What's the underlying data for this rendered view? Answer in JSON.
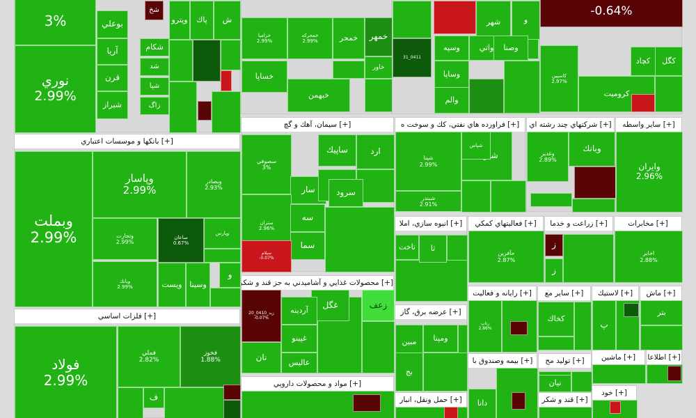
{
  "chart_data": {
    "type": "treemap",
    "colors": {
      "up": "#21b313",
      "up_mid": "#1c8f12",
      "up_dark": "#0d5a0a",
      "down": "#c8161a",
      "down_dark": "#5a0505",
      "neutral": "#3fdc3a"
    },
    "sectors": [
      {
        "id": "s_top_left",
        "name": "",
        "tiles": [
          {
            "symbol": "",
            "change": "3%",
            "color": "up"
          },
          {
            "symbol": "نوري",
            "change": "2.99%",
            "color": "up"
          },
          {
            "symbol": "بوعلي",
            "change": "",
            "color": "up"
          },
          {
            "symbol": "آريا",
            "change": "",
            "color": "up"
          },
          {
            "symbol": "قرن",
            "change": "",
            "color": "up"
          },
          {
            "symbol": "شيراز",
            "change": "",
            "color": "up"
          },
          {
            "symbol": "شخ",
            "change": "",
            "color": "down_dark"
          },
          {
            "symbol": "شكام",
            "change": "",
            "color": "up"
          },
          {
            "symbol": "شد",
            "change": "",
            "color": "up"
          },
          {
            "symbol": "شپا",
            "change": "",
            "color": "up"
          },
          {
            "symbol": "زاگ",
            "change": "",
            "color": "up"
          },
          {
            "symbol": "وپترو",
            "change": "",
            "color": "up"
          },
          {
            "symbol": "پاك",
            "change": "",
            "color": "up"
          },
          {
            "symbol": "ش",
            "change": "",
            "color": "up"
          }
        ]
      },
      {
        "id": "s_top_mid",
        "name": "",
        "tiles": [
          {
            "symbol": "خزامیا",
            "change": "2.99%",
            "color": "up"
          },
          {
            "symbol": "خساپا",
            "change": "",
            "color": "up"
          },
          {
            "symbol": "خبهمن",
            "change": "",
            "color": "up"
          },
          {
            "symbol": "خمحركه",
            "change": "2.99%",
            "color": "up"
          },
          {
            "symbol": "خمحر",
            "change": "",
            "color": "up"
          },
          {
            "symbol": "خمهر",
            "change": "",
            "color": "up_mid"
          },
          {
            "symbol": "خاور",
            "change": "",
            "color": "up"
          }
        ]
      },
      {
        "id": "s_top_right1",
        "name": "",
        "tiles": [
          {
            "symbol": "",
            "change": "",
            "color": "up"
          },
          {
            "symbol": "",
            "change": "",
            "color": "down"
          },
          {
            "symbol": "شهر",
            "change": "",
            "color": "up"
          },
          {
            "symbol": "و",
            "change": "",
            "color": "up"
          },
          {
            "symbol": "وسپه",
            "change": "",
            "color": "up"
          },
          {
            "symbol": "واتي",
            "change": "",
            "color": "up"
          },
          {
            "symbol": "وصنا",
            "change": "",
            "color": "up"
          },
          {
            "symbol": "وساپا",
            "change": "",
            "color": "up"
          },
          {
            "symbol": "والم",
            "change": "",
            "color": "up"
          },
          {
            "symbol": "31_0411",
            "change": "",
            "color": "up_dark"
          }
        ]
      },
      {
        "id": "s_top_right2",
        "name": "",
        "tiles": [
          {
            "symbol": "",
            "change": "-0.64%",
            "color": "down_dark"
          },
          {
            "symbol": "كگل",
            "change": "",
            "color": "up"
          },
          {
            "symbol": "كچاد",
            "change": "",
            "color": "up"
          },
          {
            "symbol": "كروميت",
            "change": "",
            "color": "up"
          },
          {
            "symbol": "كاسپين",
            "change": "2.97%",
            "color": "up"
          },
          {
            "symbol": "",
            "change": "",
            "color": "down"
          }
        ]
      },
      {
        "id": "s_banks",
        "name": "[+] بانكها و موسسات اعتباري",
        "tiles": [
          {
            "symbol": "وبملت",
            "change": "2.99%",
            "color": "up"
          },
          {
            "symbol": "وپاسار",
            "change": "2.99%",
            "color": "up"
          },
          {
            "symbol": "وبصادر",
            "change": "2.93%",
            "color": "up"
          },
          {
            "symbol": "وتجارت",
            "change": "2.99%",
            "color": "up"
          },
          {
            "symbol": "ساعان",
            "change": "0.67%",
            "color": "up_dark"
          },
          {
            "symbol": "وپارس",
            "change": "",
            "color": "up"
          },
          {
            "symbol": "وبانك",
            "change": "2.99%",
            "color": "up"
          },
          {
            "symbol": "ويست",
            "change": "",
            "color": "up"
          },
          {
            "symbol": "وسينا",
            "change": "",
            "color": "up"
          },
          {
            "symbol": "و",
            "change": "",
            "color": "up"
          }
        ]
      },
      {
        "id": "s_metals",
        "name": "[+] فلزات اساسي",
        "tiles": [
          {
            "symbol": "فولاد",
            "change": "2.99%",
            "color": "up"
          },
          {
            "symbol": "فملي",
            "change": "2.82%",
            "color": "up"
          },
          {
            "symbol": "فخوز",
            "change": "1.88%",
            "color": "up_mid"
          },
          {
            "symbol": "ف",
            "change": "",
            "color": "up"
          },
          {
            "symbol": "",
            "change": "",
            "color": "down_dark"
          }
        ]
      },
      {
        "id": "s_cement",
        "name": "[+] سيمان، آهك و گچ",
        "tiles": [
          {
            "symbol": "سصوفي",
            "change": "3%",
            "color": "up"
          },
          {
            "symbol": "ساپيك",
            "change": "",
            "color": "up"
          },
          {
            "symbol": "ارد",
            "change": "",
            "color": "up"
          },
          {
            "symbol": "سار",
            "change": "",
            "color": "up"
          },
          {
            "symbol": "سغ",
            "change": "",
            "color": "up"
          },
          {
            "symbol": "سرود",
            "change": "",
            "color": "up"
          },
          {
            "symbol": "ستران",
            "change": "2.96%",
            "color": "up"
          },
          {
            "symbol": "سه",
            "change": "",
            "color": "up"
          },
          {
            "symbol": "سما",
            "change": "",
            "color": "up"
          },
          {
            "symbol": "سيلام",
            "change": "-0.07%",
            "color": "down"
          }
        ]
      },
      {
        "id": "s_oil",
        "name": "[+] فراورده هاي نفتي، كك و سوخت ه",
        "tiles": [
          {
            "symbol": "شپنا",
            "change": "2.99%",
            "color": "up"
          },
          {
            "symbol": "شتران",
            "change": "",
            "color": "up"
          },
          {
            "symbol": "شبندر",
            "change": "2.91%",
            "color": "up"
          },
          {
            "symbol": "شپاس",
            "change": "",
            "color": "up"
          }
        ]
      },
      {
        "id": "s_holding",
        "name": "[+] شركتهاي چند رشته اي",
        "tiles": [
          {
            "symbol": "وبانك",
            "change": "",
            "color": "up"
          },
          {
            "symbol": "وغدير",
            "change": "2.89%",
            "color": "up"
          },
          {
            "symbol": "",
            "change": "",
            "color": "down_dark"
          },
          {
            "symbol": "",
            "change": "",
            "color": "up"
          }
        ]
      },
      {
        "id": "s_other",
        "name": "[+] ساير واسطه",
        "tiles": [
          {
            "symbol": "وايران",
            "change": "2.96%",
            "color": "up"
          }
        ]
      },
      {
        "id": "s_mass",
        "name": "[+] انبوه سازي، املا",
        "tiles": [
          {
            "symbol": "تاخت",
            "change": "",
            "color": "up"
          },
          {
            "symbol": "ثا",
            "change": "",
            "color": "up"
          }
        ]
      },
      {
        "id": "s_aux",
        "name": "[+] فعاليتهاي كمكي",
        "tiles": [
          {
            "symbol": "حآفرین",
            "change": "2.87%",
            "color": "up"
          }
        ]
      },
      {
        "id": "s_agri",
        "name": "[+] زراعت و خدما",
        "tiles": [
          {
            "symbol": "ز",
            "change": "",
            "color": "down_dark"
          },
          {
            "symbol": "ز",
            "change": "",
            "color": "up"
          }
        ]
      },
      {
        "id": "s_telecom",
        "name": "[+] مخابرات",
        "tiles": [
          {
            "symbol": "اخابر",
            "change": "2.88%",
            "color": "up"
          }
        ]
      },
      {
        "id": "s_food",
        "name": "[+] محصولات غذايي و آشاميدني به جز قند و شكر",
        "tiles": [
          {
            "symbol": "زعف",
            "change": "",
            "color": "neutral"
          },
          {
            "symbol": "غگل",
            "change": "",
            "color": "up"
          },
          {
            "symbol": "زبد_0410_20",
            "change": "-0.07%",
            "color": "down_dark"
          },
          {
            "symbol": "آردينه",
            "change": "",
            "color": "up"
          },
          {
            "symbol": "غپينو",
            "change": "",
            "color": "up"
          },
          {
            "symbol": "نان",
            "change": "",
            "color": "up"
          },
          {
            "symbol": "عاليس",
            "change": "",
            "color": "up"
          }
        ]
      },
      {
        "id": "s_pharma",
        "name": "[+] مواد و محصولات دارويي",
        "tiles": []
      },
      {
        "id": "s_power",
        "name": "[+] عرضه برق، گاز",
        "tiles": [
          {
            "symbol": "ومپنا",
            "change": "",
            "color": "up"
          },
          {
            "symbol": "مبين",
            "change": "",
            "color": "up"
          },
          {
            "symbol": "بج",
            "change": "",
            "color": "up"
          }
        ]
      },
      {
        "id": "s_computer",
        "name": "[+] رايانه و فعاليت",
        "tiles": [
          {
            "symbol": "رتاپ",
            "change": "2.86%",
            "color": "up"
          }
        ]
      },
      {
        "id": "s_mining",
        "name": "[+] ساير مع",
        "tiles": [
          {
            "symbol": "كخاك",
            "change": "",
            "color": "up"
          }
        ]
      },
      {
        "id": "s_plastic",
        "name": "[+] لاستيك",
        "tiles": [
          {
            "symbol": "پ",
            "change": "",
            "color": "up"
          }
        ]
      },
      {
        "id": "s_machinery",
        "name": "[+] ماش",
        "tiles": [
          {
            "symbol": "بتر",
            "change": "",
            "color": "up"
          }
        ]
      },
      {
        "id": "s_insurance",
        "name": "[+] بيمه وصندوق با",
        "tiles": [
          {
            "symbol": "دانا",
            "change": "",
            "color": "up"
          }
        ]
      },
      {
        "id": "s_production",
        "name": "[+] توليد مح",
        "tiles": [
          {
            "symbol": "ماد",
            "change": "",
            "color": "up"
          },
          {
            "symbol": "نيان",
            "change": "",
            "color": "up"
          }
        ]
      },
      {
        "id": "s_mashin2",
        "name": "[+] ماشين",
        "tiles": []
      },
      {
        "id": "s_info",
        "name": "[+] اطلاعا",
        "tiles": []
      },
      {
        "id": "s_transport",
        "name": "[+] حمل ونقل، انبار",
        "tiles": []
      },
      {
        "id": "s_sugar",
        "name": "[+] قند و شكر",
        "tiles": []
      },
      {
        "id": "s_khodro",
        "name": "[+] خود",
        "tiles": []
      }
    ]
  }
}
